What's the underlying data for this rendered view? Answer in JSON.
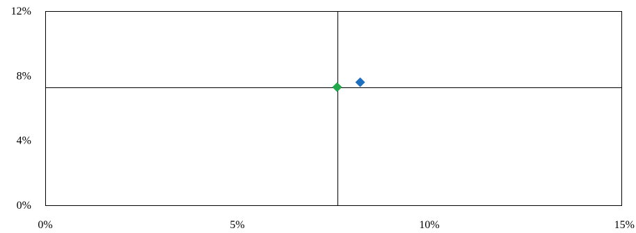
{
  "chart_data": {
    "type": "scatter",
    "title": "",
    "xlabel": "",
    "ylabel": "",
    "xlim": [
      0,
      15
    ],
    "ylim": [
      0,
      12
    ],
    "x_ticks": [
      0,
      5,
      10,
      15
    ],
    "y_ticks": [
      0,
      4,
      8,
      12
    ],
    "x_tick_labels": [
      "0%",
      "5%",
      "10%",
      "15%"
    ],
    "y_tick_labels": [
      "0%",
      "4%",
      "8%",
      "12%"
    ],
    "grid": false,
    "reference_lines": {
      "x": 7.6,
      "y": 7.3
    },
    "series": [
      {
        "marker": "diamond",
        "color": "#1f6fbf",
        "points": [
          {
            "x": 8.2,
            "y": 7.6
          }
        ]
      },
      {
        "marker": "diamond",
        "color": "#22a84a",
        "points": [
          {
            "x": 7.6,
            "y": 7.3
          }
        ]
      }
    ]
  }
}
